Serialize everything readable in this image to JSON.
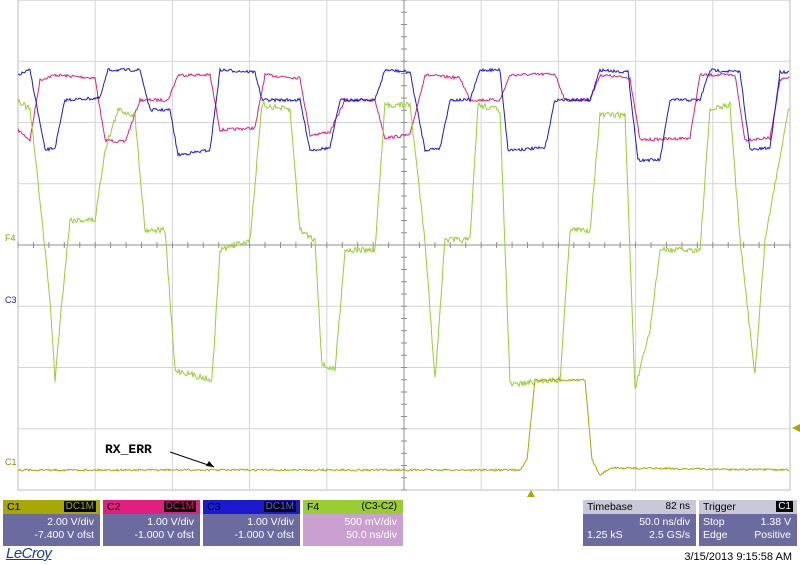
{
  "annotation": {
    "text": "RX_ERR"
  },
  "markers": {
    "f4": "F4",
    "c3": "C3",
    "c1": "C1"
  },
  "channels": [
    {
      "name": "C1",
      "coupling": "DC1M",
      "vdiv": "2.00 V/div",
      "offset": "-7.400 V ofst",
      "color": "#a8a800",
      "header_fg": "#000000"
    },
    {
      "name": "C2",
      "coupling": "DC1M",
      "vdiv": "1.00 V/div",
      "offset": "-1.000 V ofst",
      "color": "#e0207f",
      "header_fg": "#000000"
    },
    {
      "name": "C3",
      "coupling": "DC1M",
      "vdiv": "1.00 V/div",
      "offset": "-1.000 V ofst",
      "color": "#1a1ad0",
      "header_fg": "#000000"
    }
  ],
  "math": {
    "name": "F4",
    "expr": "(C3-C2)",
    "vdiv": "500 mV/div",
    "tdiv": "50.0 ns/div",
    "color": "#9acd32"
  },
  "timebase": {
    "label": "Timebase",
    "delay": "82 ns",
    "tdiv": "50.0 ns/div",
    "samples": "1.25 kS",
    "rate": "2.5 GS/s"
  },
  "trigger": {
    "label": "Trigger",
    "source": "C1",
    "mode": "Stop",
    "level": "1.38 V",
    "type": "Edge",
    "slope": "Positive"
  },
  "brand": "LeCroy",
  "timestamp": "3/15/2013 9:15:58 AM"
}
